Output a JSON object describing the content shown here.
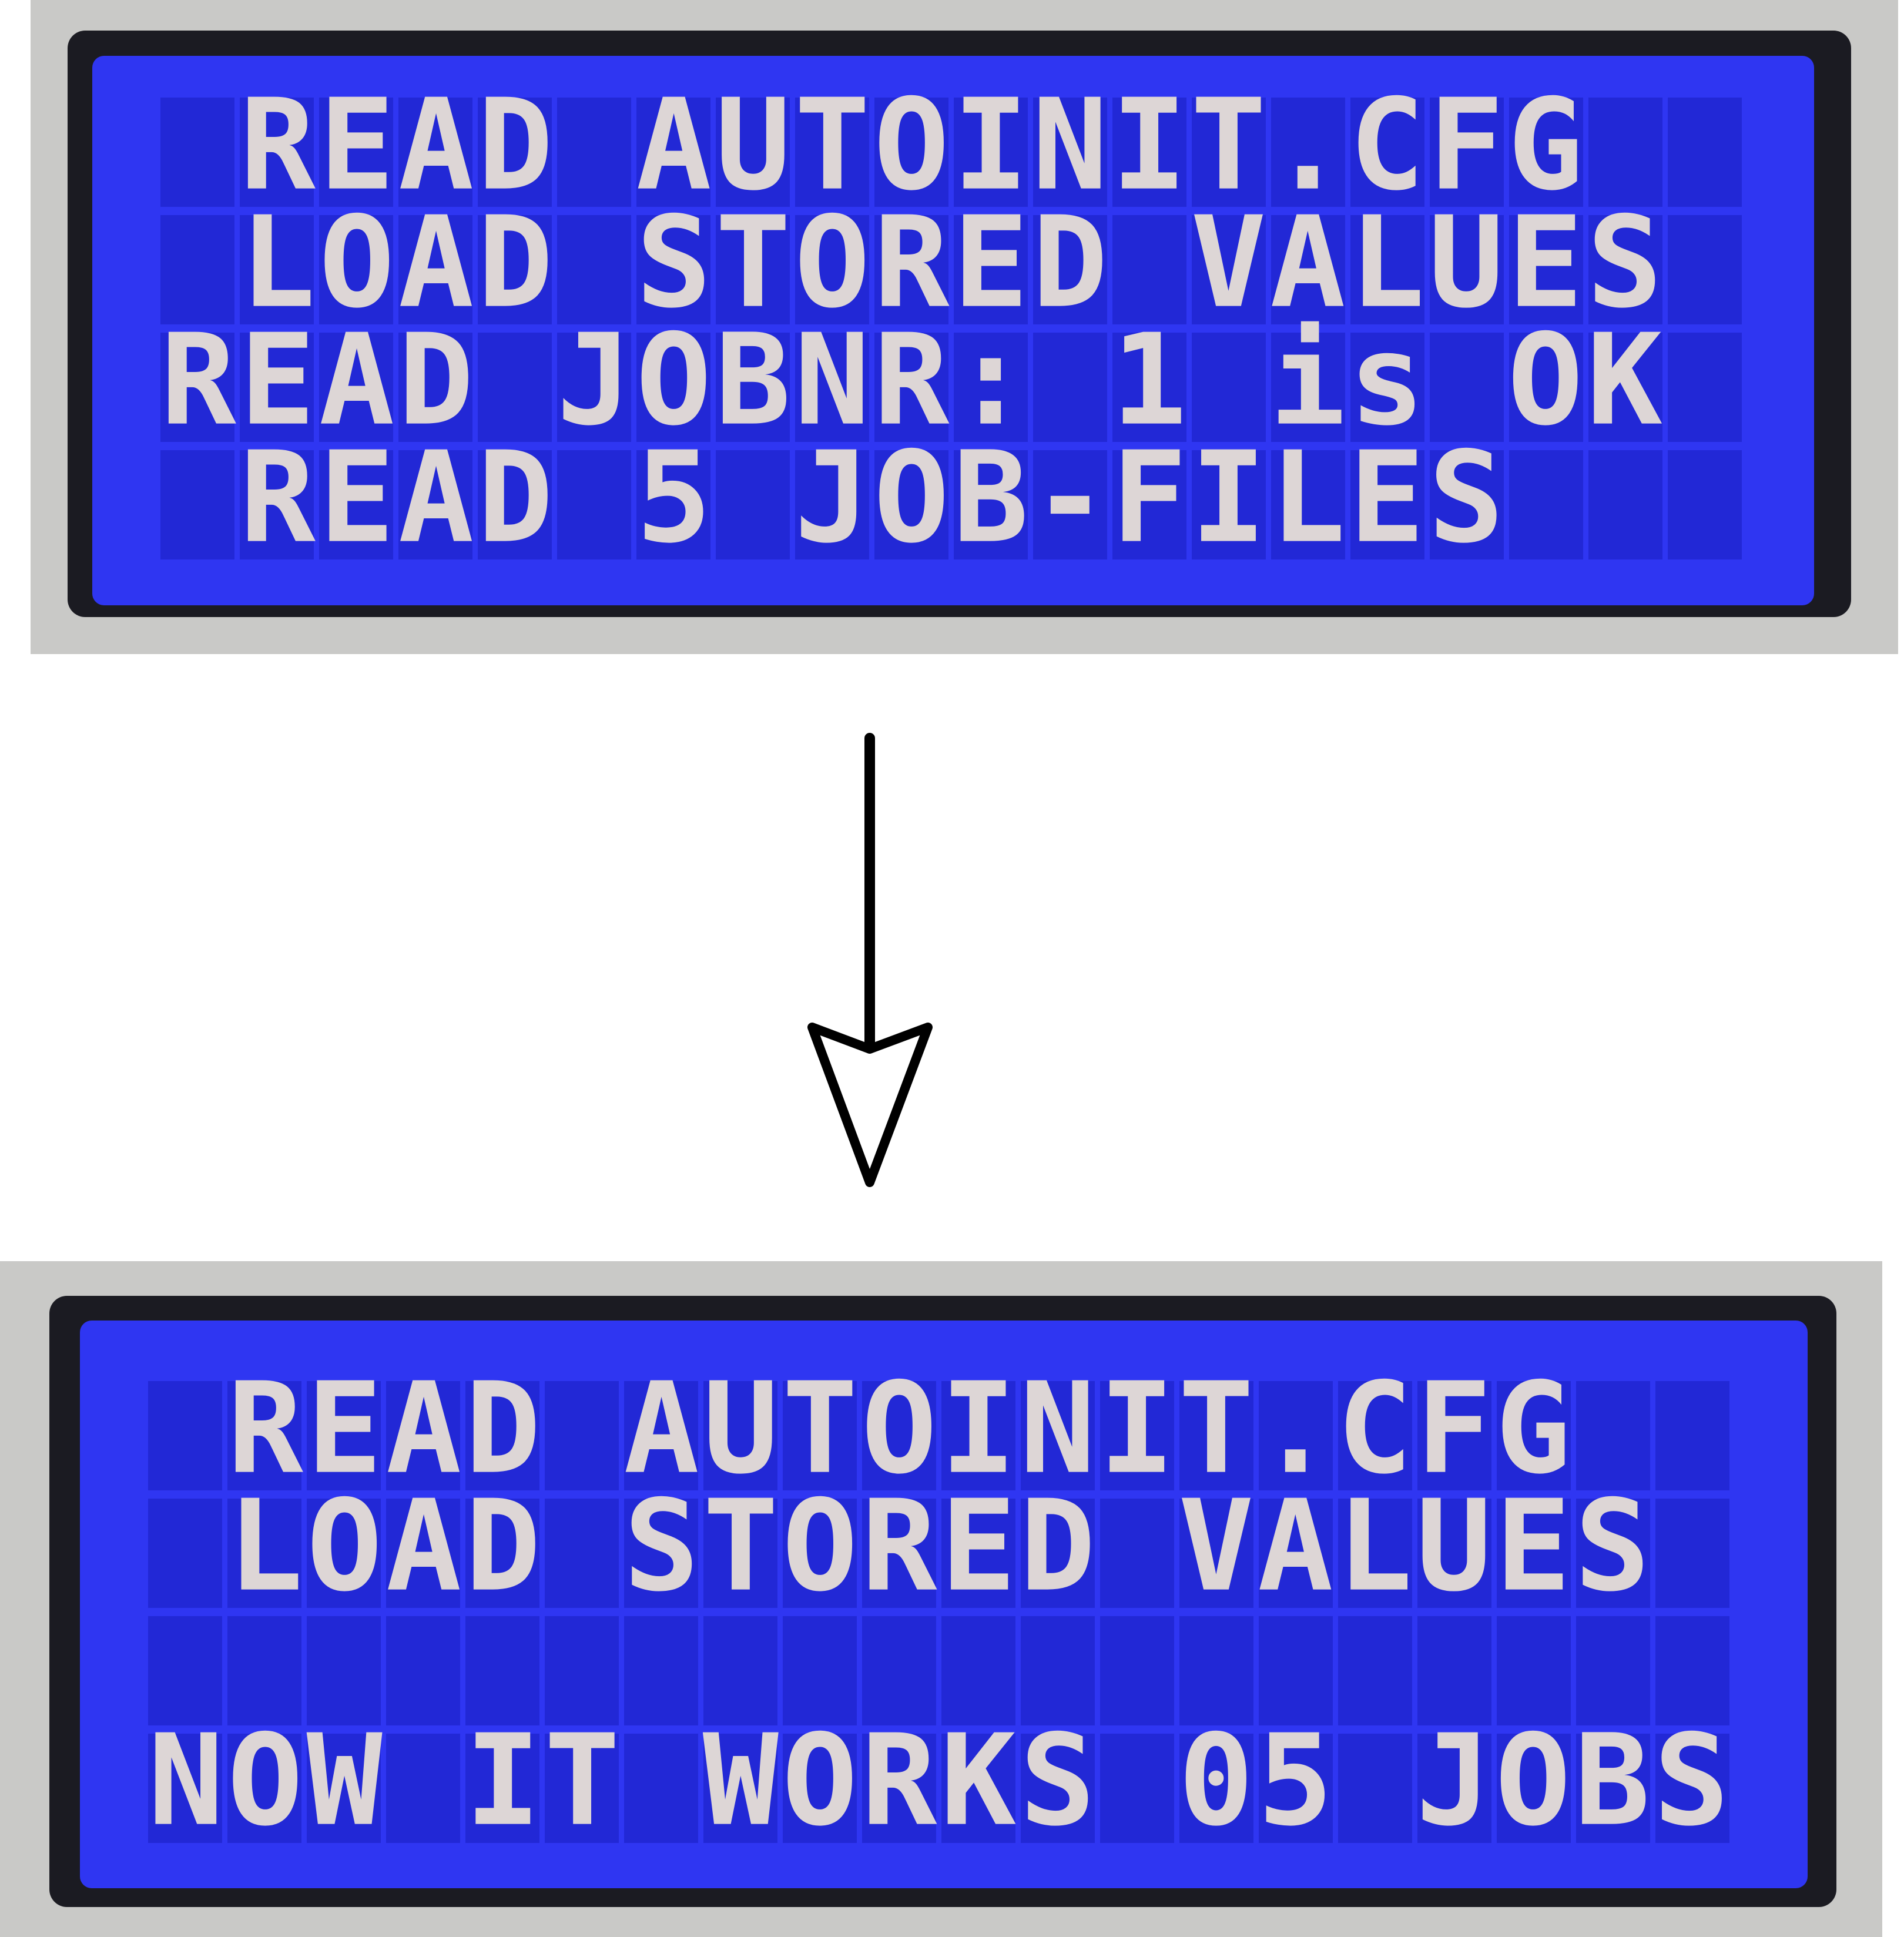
{
  "panels": [
    {
      "lines": [
        "READ AUTOINIT.CFG",
        "LOAD STORED VALUES",
        "READ JOBNR: 1 is OK",
        "READ 5 JOB-FILES"
      ]
    },
    {
      "lines": [
        "READ AUTOINIT.CFG",
        "LOAD STORED VALUES",
        "NOW IT WORKS 05 JOBS"
      ]
    }
  ]
}
